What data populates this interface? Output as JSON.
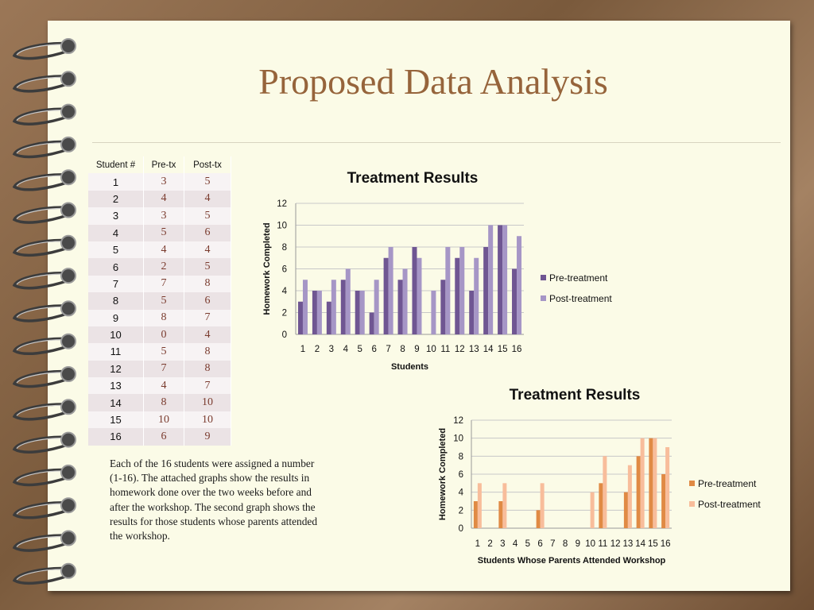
{
  "slide": {
    "title": "Proposed Data Analysis"
  },
  "table": {
    "headers": [
      "Student  #",
      "Pre-tx",
      "Post-tx"
    ],
    "rows": [
      [
        "1",
        "3",
        "5"
      ],
      [
        "2",
        "4",
        "4"
      ],
      [
        "3",
        "3",
        "5"
      ],
      [
        "4",
        "5",
        "6"
      ],
      [
        "5",
        "4",
        "4"
      ],
      [
        "6",
        "2",
        "5"
      ],
      [
        "7",
        "7",
        "8"
      ],
      [
        "8",
        "5",
        "6"
      ],
      [
        "9",
        "8",
        "7"
      ],
      [
        "10",
        "0",
        "4"
      ],
      [
        "11",
        "5",
        "8"
      ],
      [
        "12",
        "7",
        "8"
      ],
      [
        "13",
        "4",
        "7"
      ],
      [
        "14",
        "8",
        "10"
      ],
      [
        "15",
        "10",
        "10"
      ],
      [
        "16",
        "6",
        "9"
      ]
    ]
  },
  "description": "Each of the 16 students were assigned a number (1-16).  The attached graphs show the results in homework done over the two weeks before and after the workshop.  The second graph shows the results for those students whose parents attended the workshop.",
  "chart_data": [
    {
      "type": "bar",
      "title": "Treatment Results",
      "xlabel": "Students",
      "ylabel": "Homework Completed",
      "ylim": [
        0,
        12
      ],
      "yticks": [
        "0",
        "2",
        "4",
        "6",
        "8",
        "10",
        "12"
      ],
      "grid": true,
      "legend_position": "right",
      "categories": [
        "1",
        "2",
        "3",
        "4",
        "5",
        "6",
        "7",
        "8",
        "9",
        "10",
        "11",
        "12",
        "13",
        "14",
        "15",
        "16"
      ],
      "series": [
        {
          "name": "Pre-treatment",
          "color": "#6f5692",
          "values": [
            3,
            4,
            3,
            5,
            4,
            2,
            7,
            5,
            8,
            0,
            5,
            7,
            4,
            8,
            10,
            6
          ]
        },
        {
          "name": "Post-treatment",
          "color": "#a696c6",
          "values": [
            5,
            4,
            5,
            6,
            4,
            5,
            8,
            6,
            7,
            4,
            8,
            8,
            7,
            10,
            10,
            9
          ]
        }
      ]
    },
    {
      "type": "bar",
      "title": "Treatment Results",
      "xlabel": "Students Whose Parents Attended Workshop",
      "ylabel": "Homework Completed",
      "ylim": [
        0,
        12
      ],
      "yticks": [
        "0",
        "2",
        "4",
        "6",
        "8",
        "10",
        "12"
      ],
      "grid": true,
      "legend_position": "right",
      "categories": [
        "1",
        "2",
        "3",
        "4",
        "5",
        "6",
        "7",
        "8",
        "9",
        "10",
        "11",
        "12",
        "13",
        "14",
        "15",
        "16"
      ],
      "series": [
        {
          "name": "Pre-treatment",
          "color": "#e08a44",
          "values": [
            3,
            0,
            3,
            0,
            0,
            2,
            0,
            0,
            0,
            0,
            5,
            0,
            4,
            8,
            10,
            6
          ]
        },
        {
          "name": "Post-treatment",
          "color": "#f8bd9b",
          "values": [
            5,
            0,
            5,
            0,
            0,
            5,
            0,
            0,
            0,
            4,
            8,
            0,
            7,
            10,
            10,
            9
          ]
        }
      ]
    }
  ]
}
